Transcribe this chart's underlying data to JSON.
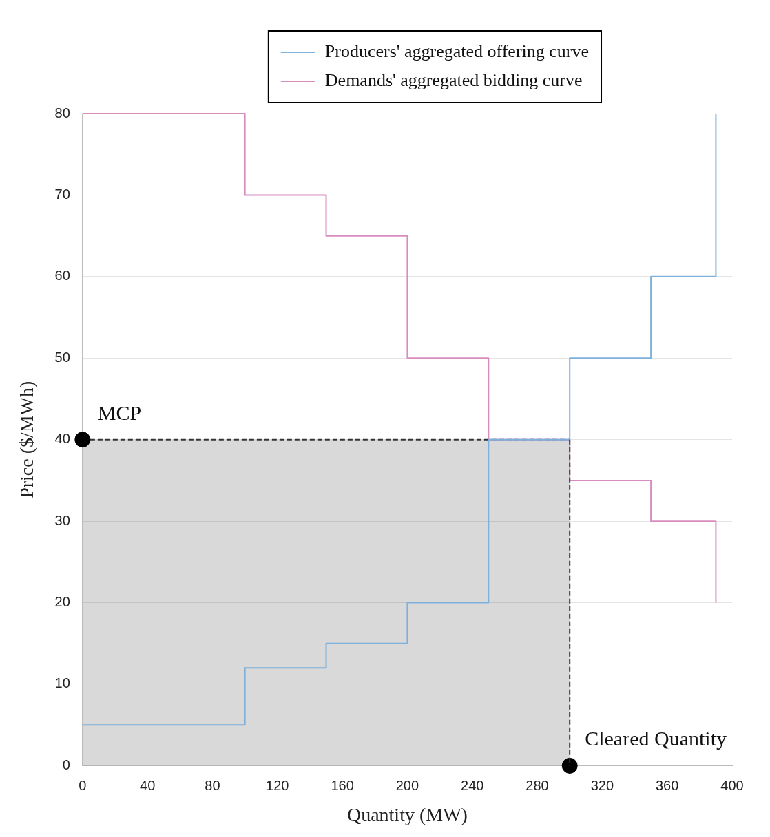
{
  "chart_data": {
    "type": "step",
    "xlabel": "Quantity (MW)",
    "ylabel": "Price ($/MWh)",
    "xlim": [
      0,
      400
    ],
    "xticks": [
      0,
      40,
      80,
      120,
      160,
      200,
      240,
      280,
      320,
      360,
      400
    ],
    "ylim": [
      0,
      80
    ],
    "yticks": [
      0,
      10,
      20,
      30,
      40,
      50,
      60,
      70,
      80
    ],
    "grid": "y",
    "legend": "top",
    "series": [
      {
        "name": "Producers' aggregated offering curve",
        "color": "#7eb0dc",
        "x": [
          0,
          100,
          150,
          200,
          250,
          300,
          350,
          390
        ],
        "values": [
          5,
          12,
          15,
          20,
          40,
          50,
          60,
          80
        ]
      },
      {
        "name": "Demands' aggregated bidding curve",
        "color": "#d98cc0",
        "x": [
          0,
          100,
          150,
          200,
          250,
          300,
          350,
          390
        ],
        "values": [
          80,
          70,
          65,
          50,
          40,
          35,
          30,
          20
        ]
      },
      {
        "type": "area",
        "color": "#333333",
        "line_style": "dashed",
        "x": [
          0,
          300
        ],
        "values": [
          40,
          40
        ]
      },
      {
        "type": "line",
        "color": "#333333",
        "line_style": "dashed",
        "marker": "none",
        "x": [
          300,
          300
        ],
        "values": [
          40,
          0
        ]
      },
      {
        "type": "scatter",
        "color": "#000000",
        "marker": "circle",
        "x": [
          0,
          300
        ],
        "values": [
          40,
          0
        ]
      }
    ],
    "annotations": [
      {
        "text": "MCP",
        "x": 0,
        "y": 40
      },
      {
        "text": "Cleared Quantity",
        "x": 300,
        "y": 0
      }
    ]
  }
}
